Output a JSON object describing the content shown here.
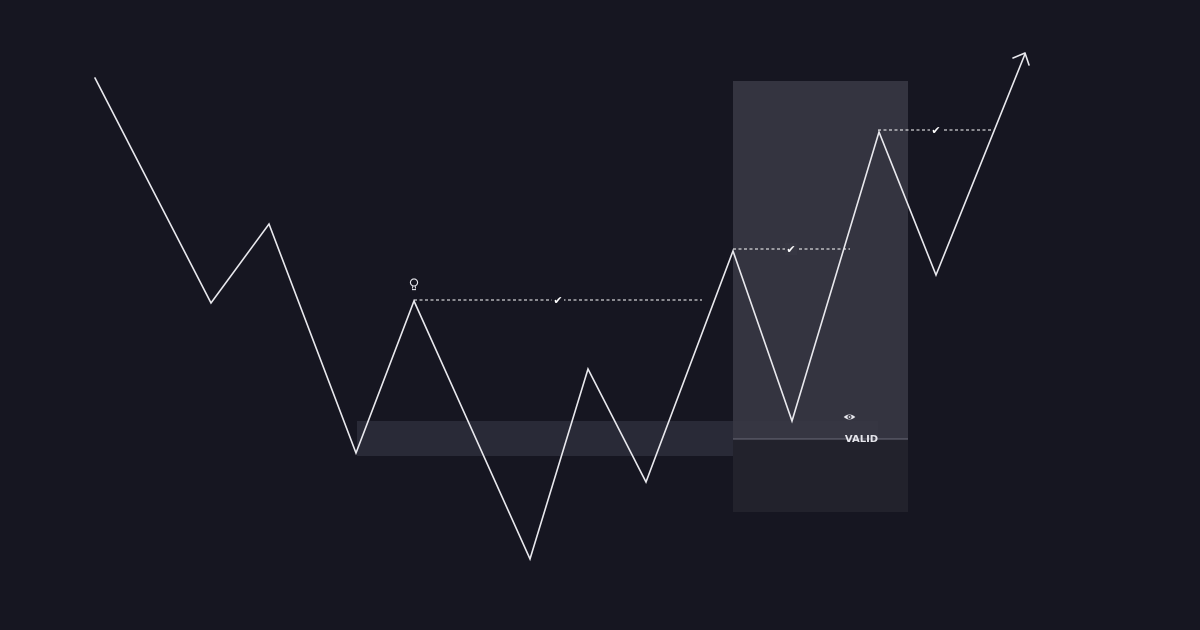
{
  "colors": {
    "background": "#161621",
    "line": "#e9e9ee",
    "zone_light": "#373743",
    "zone_dark": "#22222c",
    "band": "#2b2c3a",
    "dashed": "#ffffff",
    "label": "#e6e6ec"
  },
  "annotations": {
    "valid_label": "VALID",
    "check_glyph": "✔"
  },
  "icons": {
    "idea": "lightbulb-icon",
    "watch": "eye-icon",
    "trend": "arrow-up-right-icon"
  }
}
